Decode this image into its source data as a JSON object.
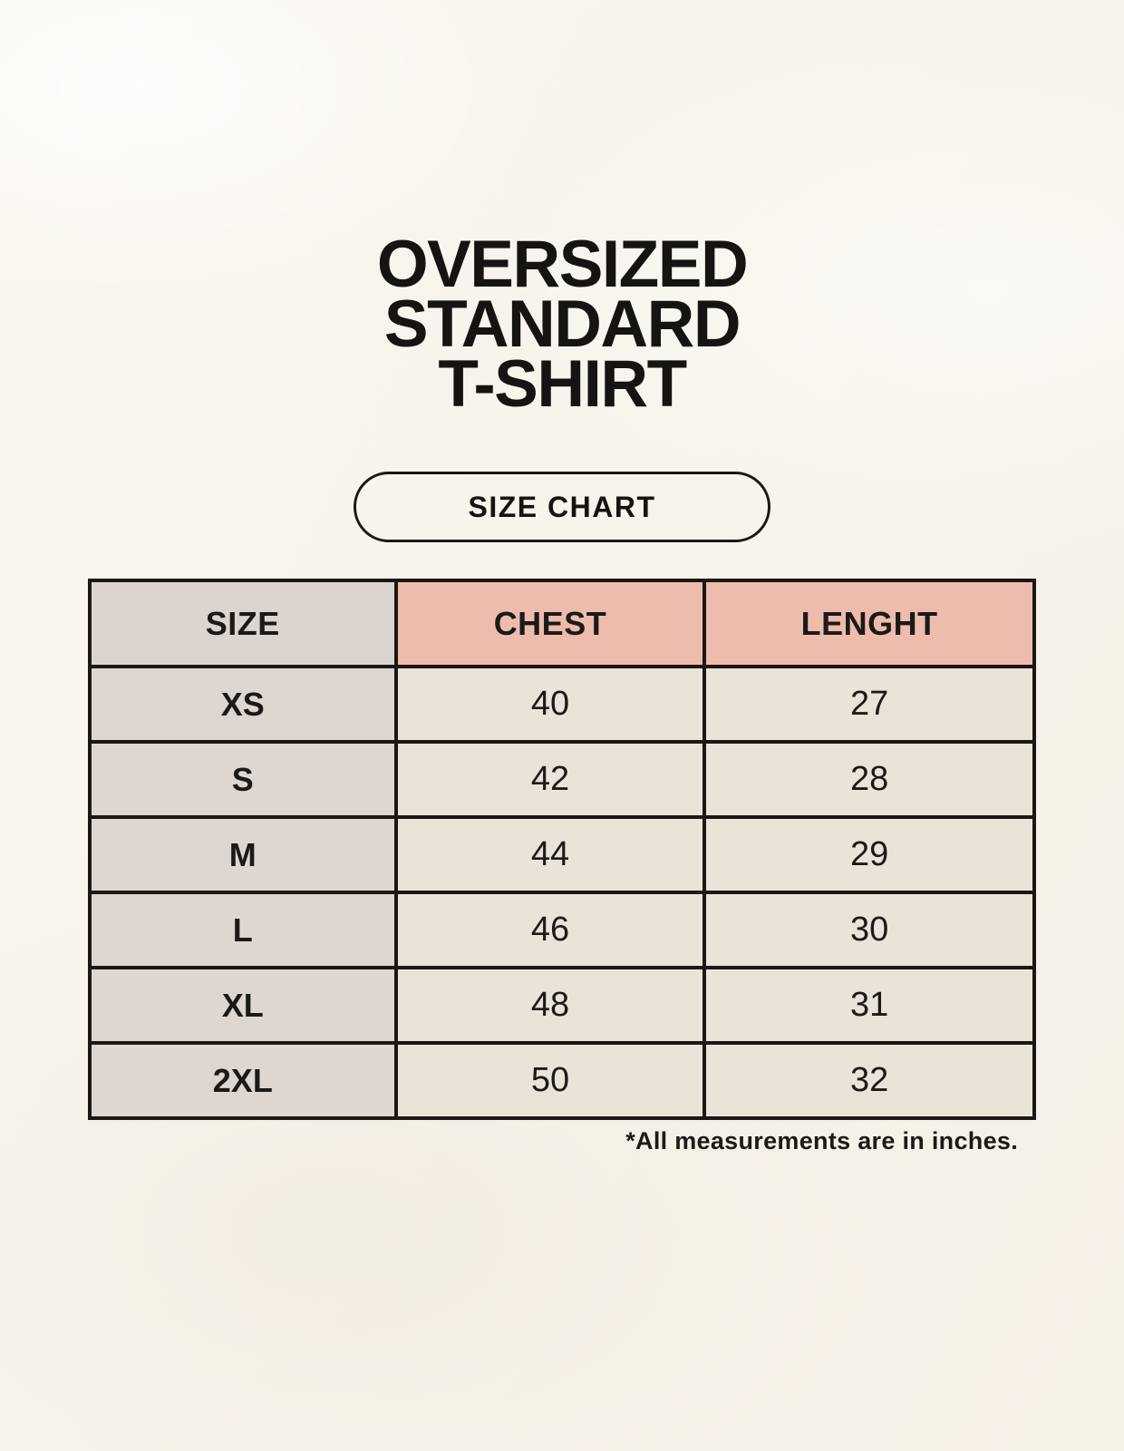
{
  "title": {
    "lines": [
      "OVERSIZED",
      "STANDARD",
      "T-SHIRT"
    ]
  },
  "badge": {
    "label": "SIZE CHART"
  },
  "table": {
    "headers": [
      "SIZE",
      "CHEST",
      "LENGHT"
    ],
    "rows": [
      [
        "XS",
        "40",
        "27"
      ],
      [
        "S",
        "42",
        "28"
      ],
      [
        "M",
        "44",
        "29"
      ],
      [
        "L",
        "46",
        "30"
      ],
      [
        "XL",
        "48",
        "31"
      ],
      [
        "2XL",
        "50",
        "32"
      ]
    ]
  },
  "footnote": "*All measurements are in inches.",
  "colors": {
    "page_background": "#f8f4ec",
    "header_size_bg": "#dcd5cf",
    "header_accent_bg": "#eebcac",
    "size_column_bg": "#ded7d1",
    "value_cell_bg": "#eae3d8",
    "table_border": "#1b1713",
    "text": "#1c1a18"
  },
  "chart_data": {
    "type": "table",
    "title": "OVERSIZED STANDARD T-SHIRT",
    "subtitle": "SIZE CHART",
    "columns": [
      "SIZE",
      "CHEST",
      "LENGHT"
    ],
    "rows": [
      {
        "size": "XS",
        "chest": 40,
        "length": 27
      },
      {
        "size": "S",
        "chest": 42,
        "length": 28
      },
      {
        "size": "M",
        "chest": 44,
        "length": 29
      },
      {
        "size": "L",
        "chest": 46,
        "length": 30
      },
      {
        "size": "XL",
        "chest": 48,
        "length": 31
      },
      {
        "size": "2XL",
        "chest": 50,
        "length": 32
      }
    ],
    "units": "inches",
    "footnote": "*All measurements are in inches."
  }
}
